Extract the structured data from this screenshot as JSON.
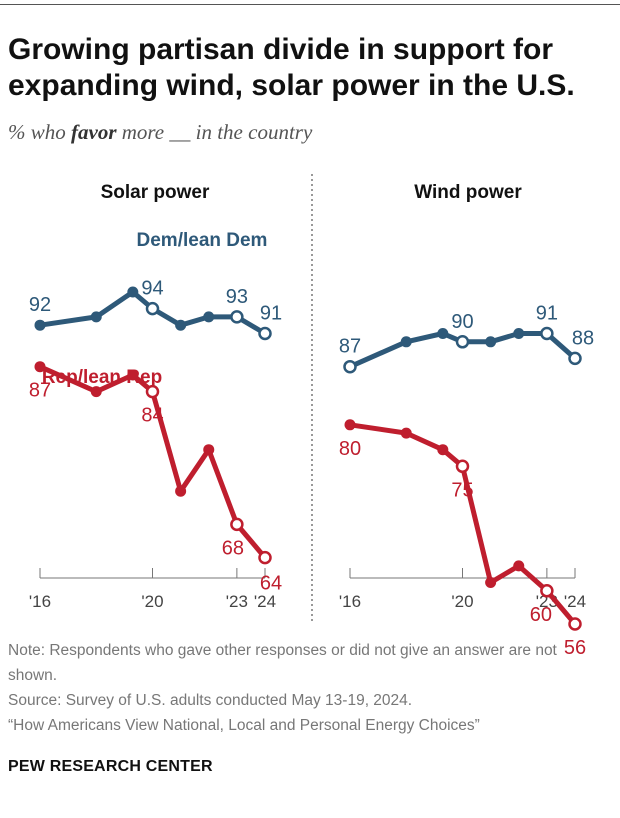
{
  "header": {
    "title": "Growing partisan divide in support for expanding wind, solar power in the U.S.",
    "subtitle_pre": "% who ",
    "subtitle_em": "favor",
    "subtitle_post": " more __ in the country"
  },
  "footer": {
    "note": "Note: Respondents who gave other responses or did not give an answer are not shown.",
    "source": "Source: Survey of U.S. adults conducted May 13-19, 2024.",
    "report": "“How Americans View National, Local and Personal Energy Choices”",
    "brand": "PEW RESEARCH CENTER"
  },
  "colors": {
    "dem": "#2E5979",
    "rep": "#BF1E2E",
    "axis": "#777777",
    "divider": "#555555"
  },
  "chart_data": [
    {
      "type": "line",
      "title": "Solar power",
      "x": [
        2016,
        2018,
        2019.3,
        2020,
        2021,
        2022,
        2023,
        2024
      ],
      "x_ticks": [
        "'16",
        "'20",
        "'23",
        "'24"
      ],
      "x_tick_values": [
        2016,
        2020,
        2023,
        2024
      ],
      "ylim": [
        0,
        100
      ],
      "series": [
        {
          "name": "Dem/lean Dem",
          "values": [
            92,
            93,
            96,
            94,
            92,
            93,
            93,
            91
          ],
          "labeled_points": [
            0,
            3,
            6,
            7
          ],
          "open_points": [
            3,
            6,
            7
          ]
        },
        {
          "name": "Rep/lean Rep",
          "values": [
            87,
            84,
            86,
            84,
            72,
            77,
            68,
            64
          ],
          "labeled_points": [
            0,
            3,
            6,
            7
          ],
          "open_points": [
            3,
            6,
            7
          ]
        }
      ]
    },
    {
      "type": "line",
      "title": "Wind power",
      "x": [
        2016,
        2018,
        2019.3,
        2020,
        2021,
        2022,
        2023,
        2024
      ],
      "x_ticks": [
        "'16",
        "'20",
        "'23",
        "'24"
      ],
      "x_tick_values": [
        2016,
        2020,
        2023,
        2024
      ],
      "ylim": [
        0,
        100
      ],
      "series": [
        {
          "name": "Dem/lean Dem",
          "values": [
            87,
            90,
            91,
            90,
            90,
            91,
            91,
            88
          ],
          "labeled_points": [
            0,
            3,
            6,
            7
          ],
          "open_points": [
            0,
            3,
            6,
            7
          ]
        },
        {
          "name": "Rep/lean Rep",
          "values": [
            80,
            79,
            77,
            75,
            61,
            63,
            60,
            56
          ],
          "labeled_points": [
            0,
            3,
            6,
            7
          ],
          "open_points": [
            3,
            6,
            7
          ]
        }
      ]
    }
  ]
}
